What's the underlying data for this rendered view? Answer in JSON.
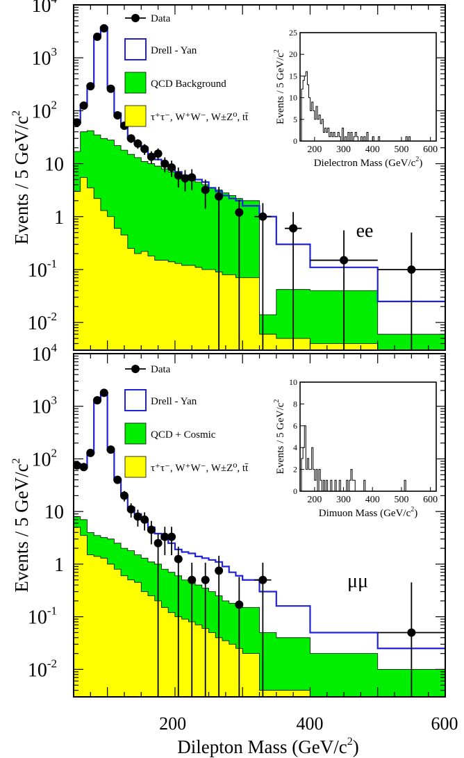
{
  "figure": {
    "xlabel_main": "Dilepton Mass (GeV/c",
    "xlabel_sup": "2",
    "xlabel_close": ")",
    "xticks": [
      "200",
      "400",
      "600"
    ]
  },
  "colors": {
    "drell_yan": "#1f22d8",
    "qcd": "#00ee00",
    "ewk": "#ffff00",
    "data": "#000000"
  },
  "chart_data": [
    {
      "type": "histogram",
      "channel": "ee",
      "channel_label": "ee",
      "yscale": "log",
      "xlim": [
        50,
        600
      ],
      "ylim": [
        0.003,
        10000
      ],
      "ylabel_main": "Events / 5 GeV/c",
      "ylabel_sup": "2",
      "yticks": [
        {
          "value": 10000,
          "base": "10",
          "exp": "4"
        },
        {
          "value": 1000,
          "base": "10",
          "exp": "3"
        },
        {
          "value": 100,
          "base": "10",
          "exp": "2"
        },
        {
          "value": 10,
          "base": "10",
          "exp": ""
        },
        {
          "value": 1,
          "base": "1",
          "exp": ""
        },
        {
          "value": 0.1,
          "base": "10",
          "exp": "-1"
        },
        {
          "value": 0.01,
          "base": "10",
          "exp": "-2"
        }
      ],
      "legend": {
        "data": "Data",
        "drell_yan": "Drell - Yan",
        "qcd": "QCD Background",
        "ewk": "τ⁺τ⁻, W⁺W⁻, W±Z⁰, tt̄"
      },
      "bin_edges": [
        50,
        60,
        70,
        80,
        90,
        100,
        110,
        120,
        130,
        140,
        150,
        160,
        170,
        180,
        190,
        200,
        210,
        220,
        230,
        240,
        250,
        260,
        270,
        280,
        290,
        300,
        325,
        350,
        400,
        500,
        600
      ],
      "ewk": [
        3.0,
        5.5,
        3.5,
        2.2,
        1.3,
        1.0,
        0.6,
        0.45,
        0.25,
        0.2,
        0.22,
        0.18,
        0.15,
        0.15,
        0.14,
        0.13,
        0.12,
        0.12,
        0.11,
        0.1,
        0.1,
        0.09,
        0.08,
        0.08,
        0.07,
        0.07,
        0.006,
        0.005,
        0.004,
        0.002
      ],
      "qcd": [
        17,
        40,
        42,
        35,
        30,
        28,
        22,
        18,
        15,
        13,
        11,
        10,
        9,
        8,
        7,
        6.5,
        6,
        5,
        4.5,
        4,
        3.5,
        3.2,
        2.8,
        2.5,
        2.2,
        2.0,
        0.014,
        0.042,
        0.04,
        0.006
      ],
      "drell_yan": [
        60,
        130,
        300,
        2500,
        3800,
        270,
        90,
        50,
        30,
        25,
        20,
        15,
        12,
        10,
        8,
        7,
        6,
        5.5,
        5,
        4.5,
        3.5,
        3.0,
        2.5,
        2.2,
        2.0,
        1.6,
        1.0,
        0.3,
        0.11,
        0.025
      ],
      "points": [
        {
          "x": 55,
          "y": 60
        },
        {
          "x": 65,
          "y": 125
        },
        {
          "x": 75,
          "y": 290
        },
        {
          "x": 85,
          "y": 2500
        },
        {
          "x": 95,
          "y": 3600
        },
        {
          "x": 105,
          "y": 260
        },
        {
          "x": 115,
          "y": 82
        },
        {
          "x": 125,
          "y": 52
        },
        {
          "x": 135,
          "y": 30
        },
        {
          "x": 145,
          "y": 24
        },
        {
          "x": 155,
          "y": 19
        },
        {
          "x": 165,
          "y": 13.5
        },
        {
          "x": 175,
          "y": 15.5
        },
        {
          "x": 185,
          "y": 10
        },
        {
          "x": 195,
          "y": 8.5
        },
        {
          "x": 205,
          "y": 6
        },
        {
          "x": 215,
          "y": 5.3
        },
        {
          "x": 225,
          "y": 5.5
        },
        {
          "x": 245,
          "y": 3.2
        },
        {
          "x": 265,
          "y": 2.4
        },
        {
          "x": 295,
          "y": 1.2
        },
        {
          "x": 330,
          "y": 1.0
        },
        {
          "x": 375,
          "y": 0.6
        },
        {
          "x": 450,
          "y": 0.15
        },
        {
          "x": 550,
          "y": 0.1
        }
      ],
      "inset": {
        "xlabel_main": "Dielectron Mass (GeV/c",
        "xlabel_sup": "2",
        "xlabel_close": ")",
        "ylabel_main": "Events / 5 GeV/c",
        "ylabel_sup": "2",
        "xlim": [
          150,
          620
        ],
        "ylim": [
          0,
          25
        ],
        "xticks": [
          200,
          300,
          400,
          500,
          600
        ],
        "yticks": [
          0,
          5,
          10,
          15,
          20,
          25
        ],
        "bin_width": 5,
        "start": 150,
        "counts": [
          0,
          12,
          14,
          15,
          16,
          13,
          10,
          7,
          9,
          7,
          5,
          8,
          5,
          6,
          4,
          5,
          2,
          3,
          2,
          3,
          1,
          2,
          1,
          2,
          1,
          1,
          2,
          1,
          0,
          3,
          0,
          1,
          0,
          2,
          0,
          2,
          0,
          1,
          2,
          1,
          0,
          0,
          1,
          0,
          1,
          0,
          2,
          0,
          0,
          0,
          1,
          0,
          0,
          0,
          1,
          0,
          0,
          0,
          0,
          0,
          0,
          0,
          0,
          0,
          0,
          0,
          0,
          0,
          0,
          0,
          0,
          0,
          0,
          1,
          0,
          1,
          0
        ]
      }
    },
    {
      "type": "histogram",
      "channel": "mumu",
      "channel_label": "μμ",
      "yscale": "log",
      "xlim": [
        50,
        600
      ],
      "ylim": [
        0.003,
        10000
      ],
      "ylabel_main": "Events / 5 GeV/c",
      "ylabel_sup": "2",
      "yticks": [
        {
          "value": 10000,
          "base": "10",
          "exp": "4"
        },
        {
          "value": 1000,
          "base": "10",
          "exp": "3"
        },
        {
          "value": 100,
          "base": "10",
          "exp": "2"
        },
        {
          "value": 10,
          "base": "10",
          "exp": ""
        },
        {
          "value": 1,
          "base": "1",
          "exp": ""
        },
        {
          "value": 0.1,
          "base": "10",
          "exp": "-1"
        },
        {
          "value": 0.01,
          "base": "10",
          "exp": "-2"
        }
      ],
      "legend": {
        "data": "Data",
        "drell_yan": "Drell - Yan",
        "qcd": "QCD + Cosmic",
        "ewk": "τ⁺τ⁻, W⁺W⁻, W±Z⁰, tt̄"
      },
      "bin_edges": [
        50,
        60,
        70,
        80,
        90,
        100,
        110,
        120,
        130,
        140,
        150,
        160,
        170,
        180,
        190,
        200,
        210,
        220,
        230,
        240,
        250,
        260,
        270,
        280,
        290,
        300,
        325,
        350,
        400,
        500,
        600
      ],
      "ewk": [
        5.0,
        3.5,
        1.5,
        1.4,
        1.3,
        1.0,
        0.8,
        0.6,
        0.5,
        0.45,
        0.3,
        0.25,
        0.2,
        0.15,
        0.12,
        0.1,
        0.09,
        0.08,
        0.07,
        0.06,
        0.05,
        0.04,
        0.035,
        0.03,
        0.025,
        0.02,
        0.004,
        0.004,
        0.003,
        0.003
      ],
      "qcd": [
        8,
        7,
        4,
        3.5,
        3.2,
        3.0,
        2.5,
        2.0,
        1.8,
        1.5,
        1.3,
        1.1,
        1.0,
        0.8,
        0.7,
        0.6,
        0.5,
        0.45,
        0.4,
        0.35,
        0.3,
        0.25,
        0.2,
        0.18,
        0.16,
        0.15,
        0.05,
        0.04,
        0.02,
        0.01
      ],
      "drell_yan": [
        80,
        75,
        130,
        1300,
        1800,
        150,
        40,
        20,
        12,
        9,
        7,
        5,
        3.8,
        3.0,
        2.5,
        1.9,
        1.7,
        1.6,
        1.4,
        1.3,
        1.2,
        1.1,
        0.9,
        0.7,
        0.6,
        0.5,
        0.3,
        0.16,
        0.05,
        0.025
      ],
      "points": [
        {
          "x": 55,
          "y": 75
        },
        {
          "x": 65,
          "y": 70
        },
        {
          "x": 75,
          "y": 130
        },
        {
          "x": 85,
          "y": 1300
        },
        {
          "x": 95,
          "y": 1800
        },
        {
          "x": 105,
          "y": 150
        },
        {
          "x": 115,
          "y": 40
        },
        {
          "x": 125,
          "y": 20
        },
        {
          "x": 135,
          "y": 11
        },
        {
          "x": 145,
          "y": 8
        },
        {
          "x": 155,
          "y": 7
        },
        {
          "x": 165,
          "y": 4.5
        },
        {
          "x": 175,
          "y": 2.5
        },
        {
          "x": 185,
          "y": 3.3
        },
        {
          "x": 195,
          "y": 3.3
        },
        {
          "x": 205,
          "y": 1.25
        },
        {
          "x": 225,
          "y": 0.5
        },
        {
          "x": 245,
          "y": 0.5
        },
        {
          "x": 265,
          "y": 0.75
        },
        {
          "x": 295,
          "y": 0.17
        },
        {
          "x": 330,
          "y": 0.5
        },
        {
          "x": 550,
          "y": 0.05
        }
      ],
      "inset": {
        "xlabel_main": "Dimuon Mass (GeV/c",
        "xlabel_sup": "2",
        "xlabel_close": ")",
        "ylabel_main": "Events / 5 GeV/c",
        "ylabel_sup": "2",
        "xlim": [
          150,
          620
        ],
        "ylim": [
          0,
          10
        ],
        "xticks": [
          200,
          300,
          400,
          500,
          600
        ],
        "yticks": [
          0,
          2,
          4,
          6,
          8,
          10
        ],
        "bin_width": 5,
        "start": 150,
        "counts": [
          0,
          3,
          4,
          6,
          2,
          3,
          2,
          2,
          4,
          2,
          1,
          2,
          0,
          2,
          1,
          0,
          1,
          0,
          1,
          0,
          0,
          1,
          0,
          0,
          1,
          0,
          0,
          1,
          0,
          0,
          0,
          0,
          1,
          0,
          1,
          2,
          1,
          1,
          0,
          0,
          0,
          0,
          0,
          0,
          1,
          0,
          0,
          0,
          0,
          0,
          0,
          0,
          0,
          0,
          0,
          0,
          0,
          0,
          0,
          0,
          0,
          0,
          0,
          0,
          0,
          0,
          0,
          0,
          0,
          0,
          0,
          0,
          1,
          0,
          0,
          0,
          0
        ]
      }
    }
  ]
}
